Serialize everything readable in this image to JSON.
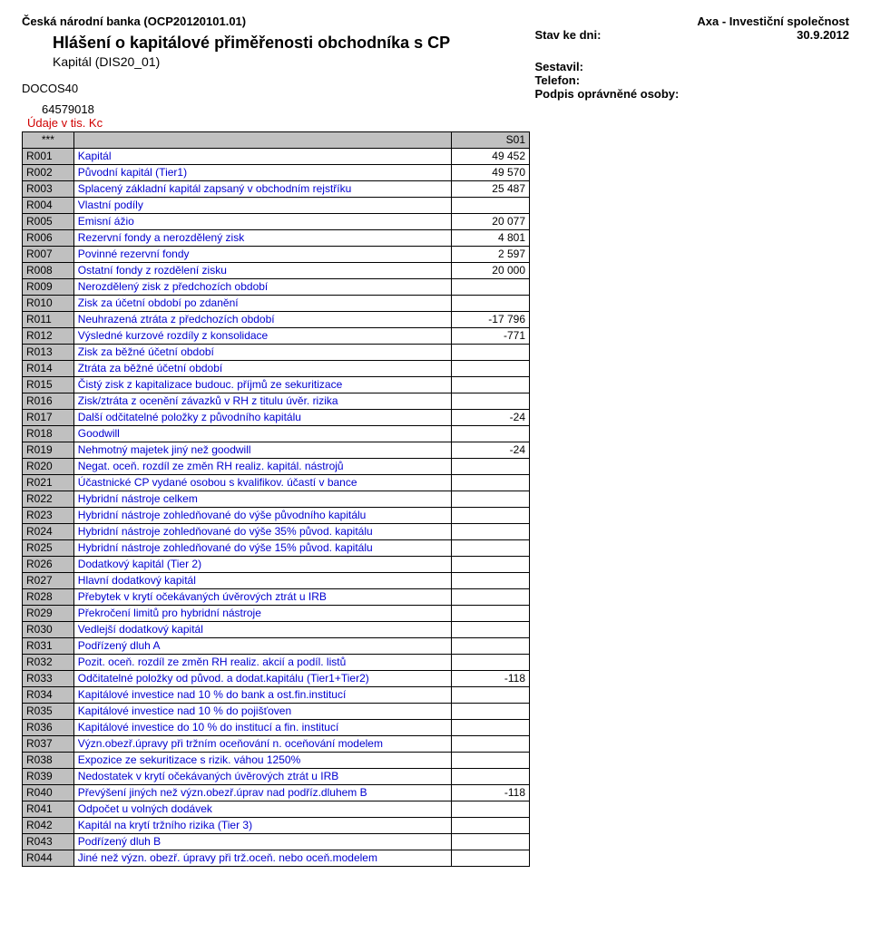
{
  "header": {
    "bank": "Česká národní banka (OCP20120101.01)",
    "heading": "Hlášení o kapitálové přiměřenosti obchodníka s CP",
    "subheading": "Kapitál (DIS20_01)",
    "docos": "DOCOS40",
    "company": "Axa - Investiční společnost",
    "stav_label": "Stav ke dni:",
    "stav_date": "30.9.2012",
    "sestavil": "Sestavil:",
    "telefon": "Telefon:",
    "podpis": "Podpis oprávněné osoby:",
    "ident": "64579018",
    "units": "Údaje v tis. Kc"
  },
  "table": {
    "header_stars": "***",
    "header_s01": "S01",
    "colors": {
      "code_bg": "#c0c0c0",
      "label_text": "#0000d0",
      "units_text": "#d00000",
      "border": "#000000"
    },
    "rows": [
      {
        "code": "R001",
        "label": "Kapitál",
        "val": "49 452"
      },
      {
        "code": "R002",
        "label": "Původní kapitál (Tier1)",
        "val": "49 570"
      },
      {
        "code": "R003",
        "label": "Splacený základní kapitál zapsaný v obchodním rejstříku",
        "val": "25 487"
      },
      {
        "code": "R004",
        "label": "Vlastní podíly",
        "val": ""
      },
      {
        "code": "R005",
        "label": "Emisní ážio",
        "val": "20 077"
      },
      {
        "code": "R006",
        "label": "Rezervní fondy a nerozdělený zisk",
        "val": "4 801"
      },
      {
        "code": "R007",
        "label": "Povinné rezervní fondy",
        "val": "2 597"
      },
      {
        "code": "R008",
        "label": "Ostatní fondy z rozdělení zisku",
        "val": "20 000"
      },
      {
        "code": "R009",
        "label": "Nerozdělený zisk z předchozích období",
        "val": ""
      },
      {
        "code": "R010",
        "label": "Zisk za účetní období po zdanění",
        "val": ""
      },
      {
        "code": "R011",
        "label": "Neuhrazená ztráta z předchozích období",
        "val": "-17 796"
      },
      {
        "code": "R012",
        "label": "Výsledné kurzové rozdíly z konsolidace",
        "val": "-771"
      },
      {
        "code": "R013",
        "label": "Zisk za běžné účetní období",
        "val": ""
      },
      {
        "code": "R014",
        "label": "Ztráta za běžné účetní období",
        "val": ""
      },
      {
        "code": "R015",
        "label": "Čistý zisk z kapitalizace budouc. příjmů ze sekuritizace",
        "val": ""
      },
      {
        "code": "R016",
        "label": "Zisk/ztráta z ocenění závazků v RH z titulu úvěr. rizika",
        "val": ""
      },
      {
        "code": "R017",
        "label": "Další odčitatelné položky z původního kapitálu",
        "val": "-24"
      },
      {
        "code": "R018",
        "label": "Goodwill",
        "val": ""
      },
      {
        "code": "R019",
        "label": "Nehmotný majetek jiný než goodwill",
        "val": "-24"
      },
      {
        "code": "R020",
        "label": "Negat. oceň. rozdíl ze změn RH realiz. kapitál. nástrojů",
        "val": ""
      },
      {
        "code": "R021",
        "label": "Účastnické CP vydané osobou s kvalifikov. účastí v bance",
        "val": ""
      },
      {
        "code": "R022",
        "label": "Hybridní nástroje celkem",
        "val": ""
      },
      {
        "code": "R023",
        "label": "Hybridní nástroje zohledňované do výše původního kapitálu",
        "val": ""
      },
      {
        "code": "R024",
        "label": "Hybridní nástroje zohledňované do výše 35% původ. kapitálu",
        "val": ""
      },
      {
        "code": "R025",
        "label": "Hybridní nástroje zohledňované do výše 15% původ. kapitálu",
        "val": ""
      },
      {
        "code": "R026",
        "label": "Dodatkový kapitál (Tier 2)",
        "val": ""
      },
      {
        "code": "R027",
        "label": "Hlavní dodatkový kapitál",
        "val": ""
      },
      {
        "code": "R028",
        "label": "Přebytek v krytí očekávaných úvěrových ztrát u IRB",
        "val": ""
      },
      {
        "code": "R029",
        "label": "Překročení limitů pro hybridní nástroje",
        "val": ""
      },
      {
        "code": "R030",
        "label": "Vedlejší dodatkový kapitál",
        "val": ""
      },
      {
        "code": "R031",
        "label": "Podřízený dluh A",
        "val": ""
      },
      {
        "code": "R032",
        "label": "Pozit. oceň. rozdíl ze změn RH realiz. akcií a podíl. listů",
        "val": ""
      },
      {
        "code": "R033",
        "label": "Odčitatelné položky od původ. a dodat.kapitálu (Tier1+Tier2)",
        "val": "-118"
      },
      {
        "code": "R034",
        "label": "Kapitálové investice nad 10 % do bank a ost.fin.institucí",
        "val": ""
      },
      {
        "code": "R035",
        "label": "Kapitálové investice nad 10 % do pojišťoven",
        "val": ""
      },
      {
        "code": "R036",
        "label": "Kapitálové investice do 10 % do institucí a fin. institucí",
        "val": ""
      },
      {
        "code": "R037",
        "label": "Význ.obezř.úpravy při tržním oceňování n. oceňování modelem",
        "val": ""
      },
      {
        "code": "R038",
        "label": "Expozice ze sekuritizace s rizik. váhou 1250%",
        "val": ""
      },
      {
        "code": "R039",
        "label": "Nedostatek v krytí očekávaných úvěrových ztrát u IRB",
        "val": ""
      },
      {
        "code": "R040",
        "label": "Převýšení jiných než význ.obezř.úprav nad podříz.dluhem B",
        "val": "-118"
      },
      {
        "code": "R041",
        "label": "Odpočet u volných dodávek",
        "val": ""
      },
      {
        "code": "R042",
        "label": "Kapitál na krytí tržního rizika (Tier 3)",
        "val": ""
      },
      {
        "code": "R043",
        "label": "Podřízený dluh B",
        "val": ""
      },
      {
        "code": "R044",
        "label": "Jiné než význ. obezř. úpravy při trž.oceň. nebo oceň.modelem",
        "val": ""
      }
    ]
  }
}
